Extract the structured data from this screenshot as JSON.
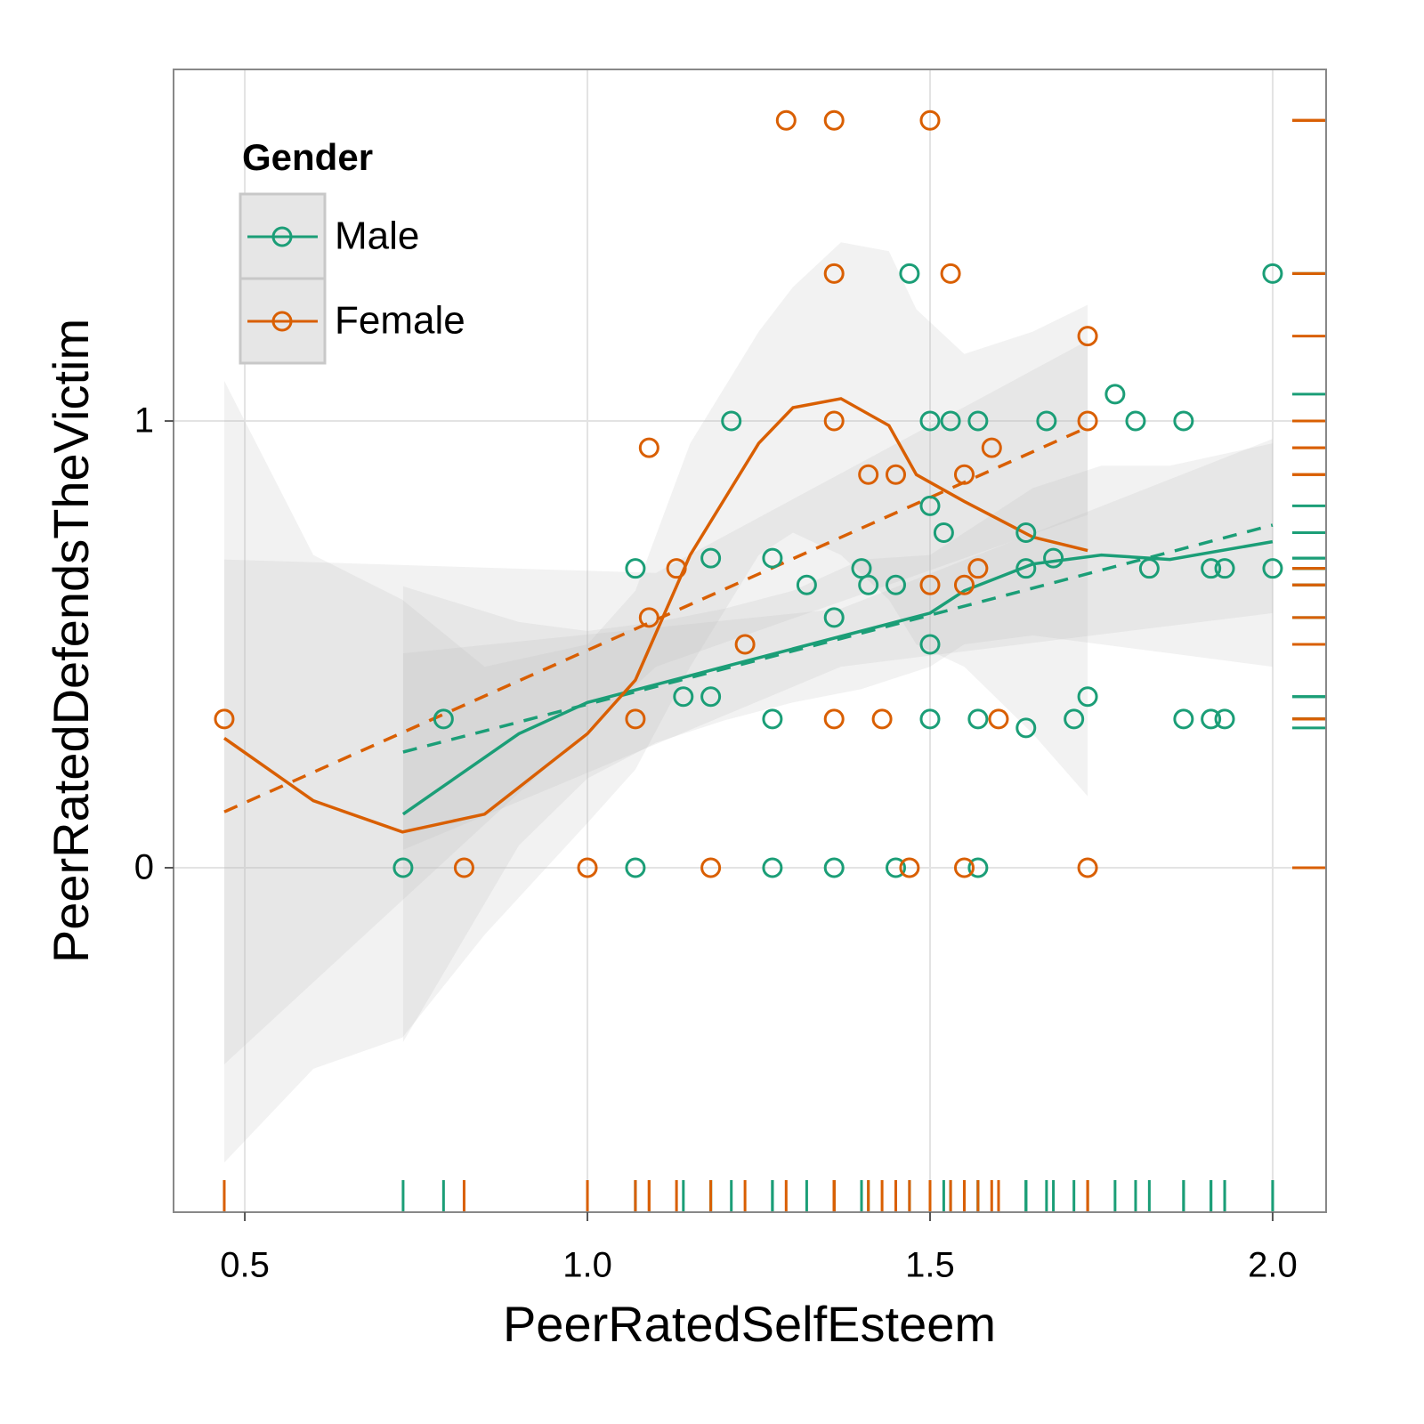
{
  "chart_data": {
    "type": "scatter",
    "x_label": "PeerRatedSelfEsteem",
    "y_label": "PeerRatedDefendsTheVictim",
    "legend_title": "Gender",
    "legend_position": "top-left",
    "grid": true,
    "rug": true,
    "xlim": [
      0.396,
      2.078
    ],
    "ylim": [
      -0.771,
      1.787
    ],
    "xticks": [
      0.5,
      {
        "value": 1.0,
        "label": "1.0"
      },
      1.5,
      {
        "value": 2.0,
        "label": "2.0"
      }
    ],
    "yticks": [
      0,
      1
    ],
    "series": [
      {
        "name": "Male",
        "color": "#1b9e77",
        "x": [
          0.731,
          0.79,
          1.07,
          1.07,
          1.14,
          1.18,
          1.18,
          1.21,
          1.27,
          1.27,
          1.27,
          1.32,
          1.36,
          1.36,
          1.4,
          1.41,
          1.45,
          1.45,
          1.47,
          1.5,
          1.5,
          1.5,
          1.5,
          1.52,
          1.53,
          1.57,
          1.57,
          1.57,
          1.64,
          1.64,
          1.64,
          1.68,
          1.67,
          1.71,
          1.73,
          1.77,
          1.8,
          1.82,
          1.87,
          1.87,
          1.91,
          1.91,
          1.93,
          1.93,
          2.0,
          2.0
        ],
        "values": [
          0,
          0.333,
          0.67,
          0,
          0.383,
          0.693,
          0.383,
          1,
          0.693,
          0.333,
          0,
          0.633,
          0.56,
          0,
          0.67,
          0.633,
          0.633,
          0,
          1.33,
          1,
          0.81,
          0.5,
          0.333,
          0.75,
          1,
          1,
          0.333,
          0,
          0.75,
          0.67,
          0.313,
          0.693,
          1,
          0.333,
          0.383,
          1.06,
          1,
          0.67,
          1,
          0.333,
          0.67,
          0.333,
          0.67,
          0.333,
          1.33,
          0.67
        ],
        "loess": {
          "x": [
            0.731,
            0.9,
            1.0,
            1.1,
            1.2,
            1.3,
            1.4,
            1.5,
            1.55,
            1.65,
            1.75,
            1.85,
            2.0
          ],
          "values": [
            0.12,
            0.3,
            0.37,
            0.41,
            0.45,
            0.49,
            0.53,
            0.57,
            0.62,
            0.68,
            0.7,
            0.69,
            0.73
          ],
          "upper": [
            0.63,
            0.55,
            0.53,
            0.55,
            0.58,
            0.62,
            0.69,
            0.7,
            0.75,
            0.85,
            0.9,
            0.9,
            0.95
          ],
          "lower": [
            -0.39,
            0.05,
            0.2,
            0.28,
            0.33,
            0.37,
            0.4,
            0.45,
            0.5,
            0.52,
            0.5,
            0.48,
            0.45
          ]
        },
        "linear": {
          "x": [
            0.731,
            1.37,
            2.0
          ],
          "values": [
            0.259,
            0.513,
            0.767
          ],
          "upper": [
            0.48,
            0.58,
            0.96
          ],
          "lower": [
            0.04,
            0.45,
            0.57
          ]
        }
      },
      {
        "name": "Female",
        "color": "#d95f02",
        "x": [
          0.47,
          0.82,
          1.0,
          1.07,
          1.09,
          1.09,
          1.13,
          1.18,
          1.23,
          1.29,
          1.36,
          1.36,
          1.36,
          1.36,
          1.41,
          1.43,
          1.45,
          1.47,
          1.5,
          1.5,
          1.53,
          1.55,
          1.55,
          1.55,
          1.57,
          1.59,
          1.6,
          1.73,
          1.73,
          1.73
        ],
        "values": [
          0.333,
          0,
          0,
          0.333,
          0.94,
          0.56,
          0.67,
          0,
          0.5,
          1.673,
          1.673,
          1.33,
          1,
          0.333,
          0.88,
          0.333,
          0.88,
          0,
          1.673,
          0.633,
          1.33,
          0.88,
          0.633,
          0,
          0.67,
          0.94,
          0.333,
          1.19,
          1,
          0
        ],
        "loess": {
          "x": [
            0.47,
            0.6,
            0.73,
            0.85,
            1.0,
            1.07,
            1.15,
            1.25,
            1.3,
            1.37,
            1.44,
            1.48,
            1.55,
            1.65,
            1.73
          ],
          "values": [
            0.29,
            0.15,
            0.08,
            0.12,
            0.3,
            0.42,
            0.7,
            0.95,
            1.03,
            1.05,
            0.99,
            0.88,
            0.82,
            0.74,
            0.71
          ],
          "upper": [
            1.09,
            0.7,
            0.6,
            0.45,
            0.5,
            0.62,
            0.95,
            1.2,
            1.3,
            1.4,
            1.38,
            1.25,
            1.15,
            1.2,
            1.26
          ],
          "lower": [
            -0.66,
            -0.45,
            -0.38,
            -0.15,
            0.1,
            0.22,
            0.45,
            0.7,
            0.75,
            0.7,
            0.6,
            0.5,
            0.45,
            0.3,
            0.16
          ]
        },
        "linear": {
          "x": [
            0.47,
            1.1,
            1.73
          ],
          "values": [
            0.125,
            0.555,
            0.986
          ],
          "upper": [
            0.69,
            0.66,
            1.18
          ],
          "lower": [
            -0.44,
            0.45,
            0.79
          ]
        }
      }
    ]
  }
}
